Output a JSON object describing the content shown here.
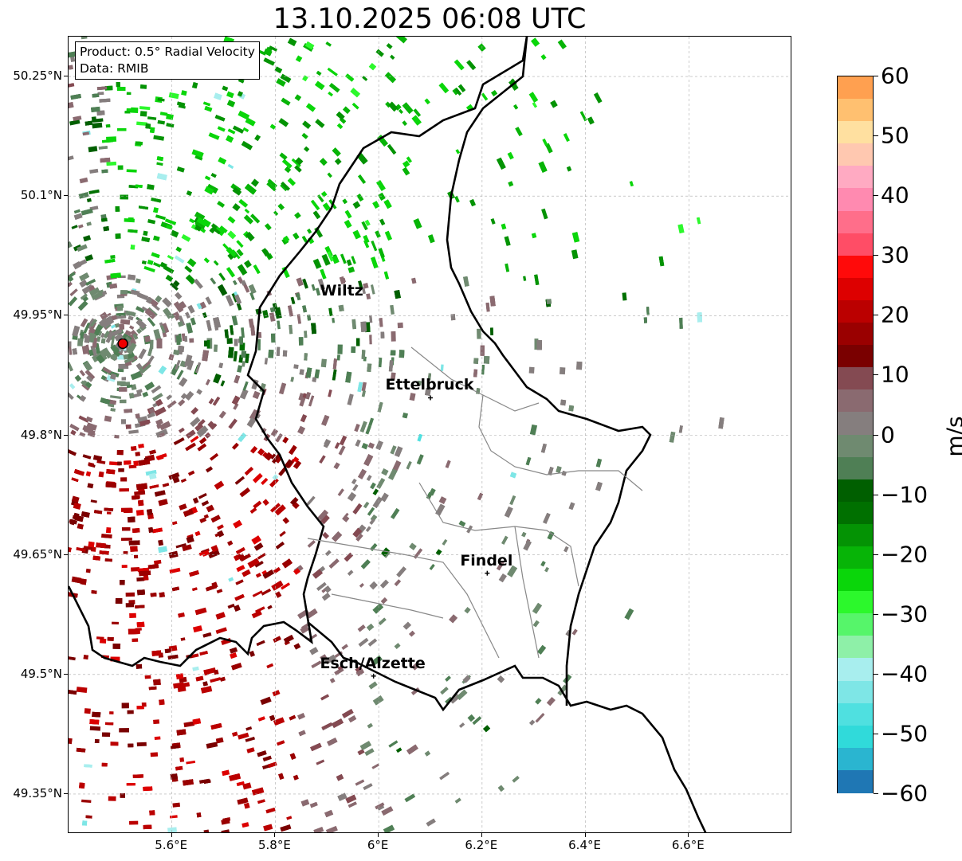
{
  "title": "13.10.2025 06:08 UTC",
  "info_box": {
    "product": "Product: 0.5° Radial Velocity",
    "source": "Data: RMIB"
  },
  "map": {
    "lon_range": [
      5.4,
      6.8
    ],
    "lat_range": [
      49.3,
      50.3
    ],
    "radar_site": {
      "lon": 5.505,
      "lat": 49.915
    },
    "lat_ticks": [
      {
        "value": 50.25,
        "label": "50.25°N"
      },
      {
        "value": 50.1,
        "label": "50.1°N"
      },
      {
        "value": 49.95,
        "label": "49.95°N"
      },
      {
        "value": 49.8,
        "label": "49.8°N"
      },
      {
        "value": 49.65,
        "label": "49.65°N"
      },
      {
        "value": 49.5,
        "label": "49.5°N"
      },
      {
        "value": 49.35,
        "label": "49.35°N"
      }
    ],
    "lon_ticks": [
      {
        "value": 5.6,
        "label": "5.6°E"
      },
      {
        "value": 5.8,
        "label": "5.8°E"
      },
      {
        "value": 6.0,
        "label": "6°E"
      },
      {
        "value": 6.2,
        "label": "6.2°E"
      },
      {
        "value": 6.4,
        "label": "6.4°E"
      },
      {
        "value": 6.6,
        "label": "6.6°E"
      }
    ],
    "cities": [
      {
        "name": "Wiltz",
        "lon": 5.93,
        "lat": 49.965
      },
      {
        "name": "Ettelbruck",
        "lon": 6.1,
        "lat": 49.847
      },
      {
        "name": "Findel",
        "lon": 6.21,
        "lat": 49.627
      },
      {
        "name": "Esch/Alzette",
        "lon": 5.99,
        "lat": 49.498
      }
    ]
  },
  "colorbar": {
    "label": "m/s",
    "range": [
      -60,
      60
    ],
    "ticks": [
      {
        "value": 60,
        "label": "60"
      },
      {
        "value": 50,
        "label": "50"
      },
      {
        "value": 40,
        "label": "40"
      },
      {
        "value": 30,
        "label": "30"
      },
      {
        "value": 20,
        "label": "20"
      },
      {
        "value": 10,
        "label": "10"
      },
      {
        "value": 0,
        "label": "0"
      },
      {
        "value": -10,
        "label": "−10"
      },
      {
        "value": -20,
        "label": "−20"
      },
      {
        "value": -30,
        "label": "−30"
      },
      {
        "value": -40,
        "label": "−40"
      },
      {
        "value": -50,
        "label": "−50"
      },
      {
        "value": -60,
        "label": "−60"
      }
    ],
    "colors": [
      "#1f77b4",
      "#2ab5d0",
      "#30dada",
      "#4fe0e0",
      "#7ee6e6",
      "#a8eeee",
      "#8ef0a8",
      "#56f56a",
      "#2cf82c",
      "#0ad60a",
      "#07b407",
      "#049304",
      "#007000",
      "#005f00",
      "#4f7f55",
      "#6f8a70",
      "#857e7e",
      "#8a6a70",
      "#844a52",
      "#7a0000",
      "#9a0000",
      "#bb0000",
      "#dd0000",
      "#ff0a0a",
      "#ff4d66",
      "#ff6e8a",
      "#ff8ab0",
      "#ffaac2",
      "#ffc8b0",
      "#ffe0a0",
      "#ffc070",
      "#ffa050"
    ]
  }
}
